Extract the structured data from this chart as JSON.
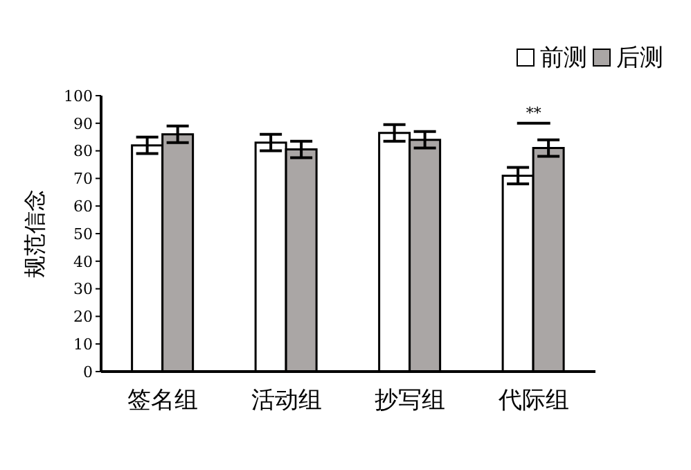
{
  "chart_data": {
    "type": "bar",
    "ylabel": "规范信念",
    "categories": [
      "签名组",
      "活动组",
      "抄写组",
      "代际组"
    ],
    "series": [
      {
        "name": "前测",
        "color": "#ffffff",
        "values": [
          82,
          83,
          86.5,
          71
        ],
        "errors": [
          3,
          3,
          3,
          3
        ]
      },
      {
        "name": "后测",
        "color": "#aaa6a5",
        "values": [
          86,
          80.5,
          84,
          81
        ],
        "errors": [
          3,
          3,
          3,
          3
        ]
      }
    ],
    "ylim": [
      0,
      100
    ],
    "yticks": [
      0,
      10,
      20,
      30,
      40,
      50,
      60,
      70,
      80,
      90,
      100
    ],
    "grid": false,
    "legend": "top right",
    "annotations": [
      "**"
    ]
  }
}
